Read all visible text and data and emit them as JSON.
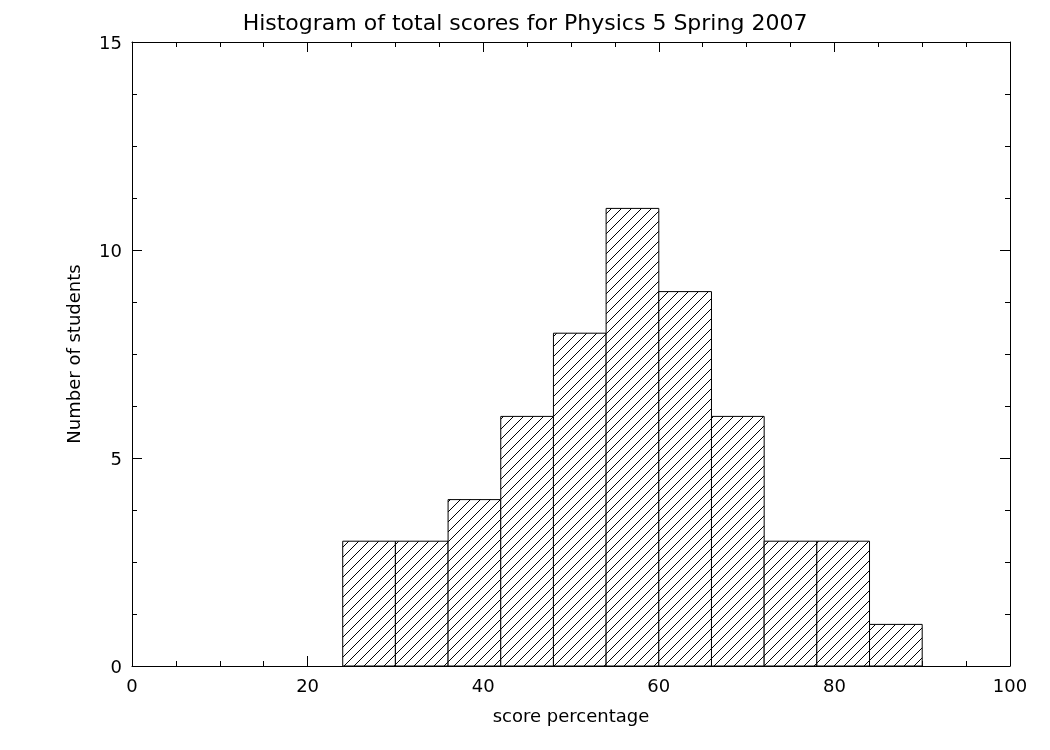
{
  "chart_data": {
    "type": "histogram",
    "title": "Histogram of total scores for Physics 5 Spring 2007",
    "xlabel": "score percentage",
    "ylabel": "Number of students",
    "bins": [
      24,
      30,
      36,
      42,
      48,
      54,
      60,
      66,
      72,
      78,
      84,
      90
    ],
    "values": [
      3,
      3,
      4,
      6,
      8,
      11,
      9,
      6,
      3,
      3,
      1
    ],
    "color": "#000000",
    "xlim": [
      0,
      100
    ],
    "xticks": [
      0,
      20,
      40,
      60,
      80,
      100
    ],
    "ylim": [
      0,
      15
    ],
    "yticks": [
      0,
      5,
      10,
      15
    ],
    "grid": false
  }
}
